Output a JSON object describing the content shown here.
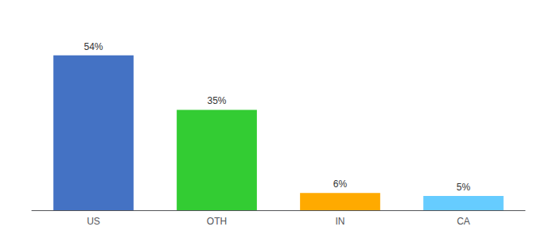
{
  "chart_data": {
    "type": "bar",
    "categories": [
      "US",
      "OTH",
      "IN",
      "CA"
    ],
    "values": [
      54,
      35,
      6,
      5
    ],
    "value_labels": [
      "54%",
      "35%",
      "6%",
      "5%"
    ],
    "data_labels": true,
    "colors": [
      "#4472c4",
      "#33cc33",
      "#ffaa00",
      "#66ccff"
    ],
    "ylim": [
      0,
      65
    ],
    "tick_labels": "x",
    "grid": false
  }
}
